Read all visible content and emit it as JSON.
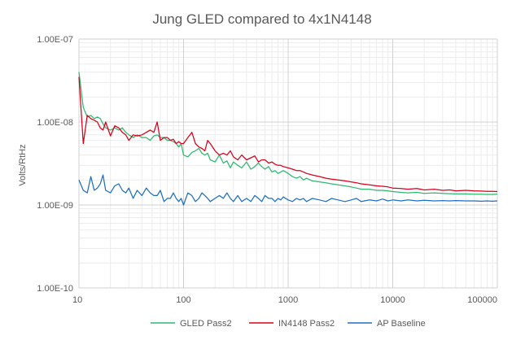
{
  "chart_data": {
    "type": "line",
    "title": "Jung GLED compared to 4x1N4148",
    "xlabel": "",
    "ylabel": "Volts/RtHz",
    "x_scale": "log",
    "y_scale": "log",
    "xlim": [
      10,
      100000
    ],
    "ylim": [
      1e-10,
      1e-07
    ],
    "x_ticks": [
      10,
      100,
      1000,
      10000,
      100000
    ],
    "x_tick_labels": [
      "10",
      "100",
      "1000",
      "10000",
      "100000"
    ],
    "y_ticks": [
      1e-10,
      1e-09,
      1e-08,
      1e-07
    ],
    "y_tick_labels": [
      "1.00E-10",
      "1.00E-09",
      "1.00E-08",
      "1.00E-07"
    ],
    "grid": true,
    "minor_grid": true,
    "legend_position": "bottom",
    "series": [
      {
        "name": "GLED Pass2",
        "color": "#2eb872",
        "x": [
          10,
          11,
          12,
          13,
          14,
          15,
          16,
          17,
          18,
          20,
          22,
          24,
          26,
          28,
          30,
          33,
          36,
          40,
          44,
          48,
          52,
          56,
          60,
          65,
          70,
          75,
          80,
          85,
          90,
          95,
          100,
          110,
          120,
          130,
          140,
          150,
          160,
          170,
          180,
          200,
          220,
          240,
          260,
          280,
          300,
          330,
          360,
          400,
          440,
          480,
          520,
          560,
          600,
          650,
          700,
          750,
          800,
          850,
          900,
          1000,
          1100,
          1200,
          1300,
          1400,
          1500,
          1700,
          2000,
          2300,
          2600,
          3000,
          3500,
          4000,
          4500,
          5000,
          6000,
          7000,
          8000,
          9000,
          10000,
          12000,
          14000,
          17000,
          20000,
          25000,
          30000,
          35000,
          40000,
          50000,
          60000,
          70000,
          80000,
          90000,
          100000
        ],
        "y": [
          4e-08,
          1.5e-08,
          1.15e-08,
          1.2e-08,
          1.1e-08,
          1.15e-08,
          1.1e-08,
          9.5e-09,
          8.5e-09,
          8e-09,
          8.5e-09,
          8e-09,
          8.5e-09,
          7.5e-09,
          7e-09,
          6.5e-09,
          7e-09,
          6.5e-09,
          6.5e-09,
          6e-09,
          6.8e-09,
          7e-09,
          6.5e-09,
          6.5e-09,
          6e-09,
          6e-09,
          5.8e-09,
          5.5e-09,
          5e-09,
          5.5e-09,
          4e-09,
          3.8e-09,
          4.3e-09,
          4.5e-09,
          4.8e-09,
          4.2e-09,
          4e-09,
          4.2e-09,
          3.5e-09,
          3.3e-09,
          4e-09,
          3.2e-09,
          3.4e-09,
          2.8e-09,
          3.3e-09,
          3e-09,
          2.8e-09,
          3.3e-09,
          2.7e-09,
          2.9e-09,
          3.2e-09,
          2.9e-09,
          2.7e-09,
          2.9e-09,
          2.5e-09,
          2.6e-09,
          2.4e-09,
          2.5e-09,
          2.6e-09,
          2.4e-09,
          2.2e-09,
          2.1e-09,
          2.2e-09,
          2e-09,
          2.1e-09,
          1.95e-09,
          1.9e-09,
          1.85e-09,
          1.8e-09,
          1.75e-09,
          1.7e-09,
          1.65e-09,
          1.6e-09,
          1.55e-09,
          1.55e-09,
          1.5e-09,
          1.5e-09,
          1.48e-09,
          1.45e-09,
          1.42e-09,
          1.4e-09,
          1.42e-09,
          1.38e-09,
          1.4e-09,
          1.38e-09,
          1.37e-09,
          1.36e-09,
          1.36e-09,
          1.35e-09,
          1.35e-09,
          1.34e-09,
          1.34e-09,
          1.35e-09
        ]
      },
      {
        "name": "IN4148 Pass2",
        "color": "#d9001b",
        "x": [
          10,
          11,
          12,
          13,
          14,
          15,
          16,
          17,
          18,
          20,
          22,
          24,
          26,
          28,
          30,
          33,
          36,
          40,
          44,
          48,
          52,
          56,
          60,
          65,
          70,
          75,
          80,
          85,
          90,
          95,
          100,
          110,
          120,
          130,
          140,
          150,
          160,
          170,
          180,
          200,
          220,
          240,
          260,
          280,
          300,
          330,
          360,
          400,
          440,
          480,
          520,
          560,
          600,
          650,
          700,
          750,
          800,
          850,
          900,
          1000,
          1100,
          1200,
          1300,
          1400,
          1500,
          1700,
          2000,
          2300,
          2600,
          3000,
          3500,
          4000,
          4500,
          5000,
          6000,
          7000,
          8000,
          9000,
          10000,
          12000,
          14000,
          17000,
          20000,
          25000,
          30000,
          35000,
          40000,
          50000,
          60000,
          70000,
          80000,
          90000,
          100000
        ],
        "y": [
          3.5e-08,
          5.5e-09,
          1.2e-08,
          1.1e-08,
          1.05e-08,
          1e-08,
          8.5e-09,
          8e-09,
          1e-08,
          6.8e-09,
          9e-09,
          8.5e-09,
          7.5e-09,
          7e-09,
          6e-09,
          7e-09,
          6.8e-09,
          7e-09,
          7.5e-09,
          8e-09,
          7.5e-09,
          1e-08,
          6e-09,
          6.5e-09,
          6.5e-09,
          6e-09,
          6.2e-09,
          5.5e-09,
          5.8e-09,
          5.5e-09,
          5.5e-09,
          6.5e-09,
          7.5e-09,
          5.5e-09,
          5e-09,
          4.8e-09,
          4.5e-09,
          6e-09,
          5.5e-09,
          4.5e-09,
          4e-09,
          4.2e-09,
          4e-09,
          4.5e-09,
          3.8e-09,
          3.5e-09,
          4e-09,
          3.5e-09,
          3.7e-09,
          3.9e-09,
          3.3e-09,
          3.5e-09,
          3.5e-09,
          3.2e-09,
          3.3e-09,
          3.1e-09,
          3e-09,
          3e-09,
          2.9e-09,
          2.8e-09,
          2.7e-09,
          2.6e-09,
          2.6e-09,
          2.5e-09,
          2.4e-09,
          2.3e-09,
          2.2e-09,
          2.1e-09,
          2.05e-09,
          2e-09,
          1.95e-09,
          1.9e-09,
          1.85e-09,
          1.8e-09,
          1.75e-09,
          1.7e-09,
          1.68e-09,
          1.65e-09,
          1.6e-09,
          1.58e-09,
          1.55e-09,
          1.58e-09,
          1.52e-09,
          1.55e-09,
          1.5e-09,
          1.52e-09,
          1.48e-09,
          1.5e-09,
          1.48e-09,
          1.47e-09,
          1.46e-09,
          1.46e-09,
          1.45e-09
        ]
      },
      {
        "name": "AP Baseline",
        "color": "#1f6fbf",
        "x": [
          10,
          11,
          12,
          13,
          14,
          15,
          16,
          17,
          18,
          20,
          22,
          24,
          26,
          28,
          30,
          33,
          36,
          40,
          44,
          48,
          52,
          56,
          60,
          65,
          70,
          75,
          80,
          85,
          90,
          95,
          100,
          110,
          120,
          130,
          140,
          150,
          160,
          170,
          180,
          200,
          220,
          240,
          260,
          280,
          300,
          330,
          360,
          400,
          440,
          480,
          520,
          560,
          600,
          650,
          700,
          750,
          800,
          850,
          900,
          1000,
          1100,
          1200,
          1300,
          1400,
          1500,
          1700,
          2000,
          2300,
          2600,
          3000,
          3500,
          4000,
          4500,
          5000,
          6000,
          7000,
          8000,
          9000,
          10000,
          12000,
          14000,
          17000,
          20000,
          25000,
          30000,
          35000,
          40000,
          50000,
          60000,
          70000,
          80000,
          90000,
          100000
        ],
        "y": [
          2e-09,
          1.5e-09,
          1.4e-09,
          2.2e-09,
          1.5e-09,
          1.6e-09,
          1.8e-09,
          2.3e-09,
          1.5e-09,
          1.4e-09,
          1.7e-09,
          1.8e-09,
          1.5e-09,
          1.4e-09,
          1.6e-09,
          1.2e-09,
          1.5e-09,
          1.3e-09,
          1.6e-09,
          1.4e-09,
          1.3e-09,
          1.3e-09,
          1.5e-09,
          1.1e-09,
          1.2e-09,
          1.2e-09,
          1.4e-09,
          1.2e-09,
          1.1e-09,
          1.2e-09,
          1e-09,
          1.4e-09,
          1.3e-09,
          1.1e-09,
          1.2e-09,
          1.4e-09,
          1.3e-09,
          1.2e-09,
          1.1e-09,
          1.2e-09,
          1.3e-09,
          1.2e-09,
          1.4e-09,
          1.2e-09,
          1.1e-09,
          1.3e-09,
          1.1e-09,
          1.2e-09,
          1.1e-09,
          1.3e-09,
          1.2e-09,
          1.1e-09,
          1.3e-09,
          1.2e-09,
          1.2e-09,
          1.1e-09,
          1.2e-09,
          1.15e-09,
          1.25e-09,
          1.15e-09,
          1.1e-09,
          1.2e-09,
          1.15e-09,
          1.2e-09,
          1.1e-09,
          1.2e-09,
          1.15e-09,
          1.1e-09,
          1.2e-09,
          1.15e-09,
          1.1e-09,
          1.15e-09,
          1.2e-09,
          1.1e-09,
          1.15e-09,
          1.12e-09,
          1.18e-09,
          1.12e-09,
          1.15e-09,
          1.12e-09,
          1.15e-09,
          1.12e-09,
          1.14e-09,
          1.12e-09,
          1.13e-09,
          1.12e-09,
          1.13e-09,
          1.12e-09,
          1.12e-09,
          1.11e-09,
          1.12e-09,
          1.11e-09,
          1.12e-09
        ]
      }
    ]
  }
}
